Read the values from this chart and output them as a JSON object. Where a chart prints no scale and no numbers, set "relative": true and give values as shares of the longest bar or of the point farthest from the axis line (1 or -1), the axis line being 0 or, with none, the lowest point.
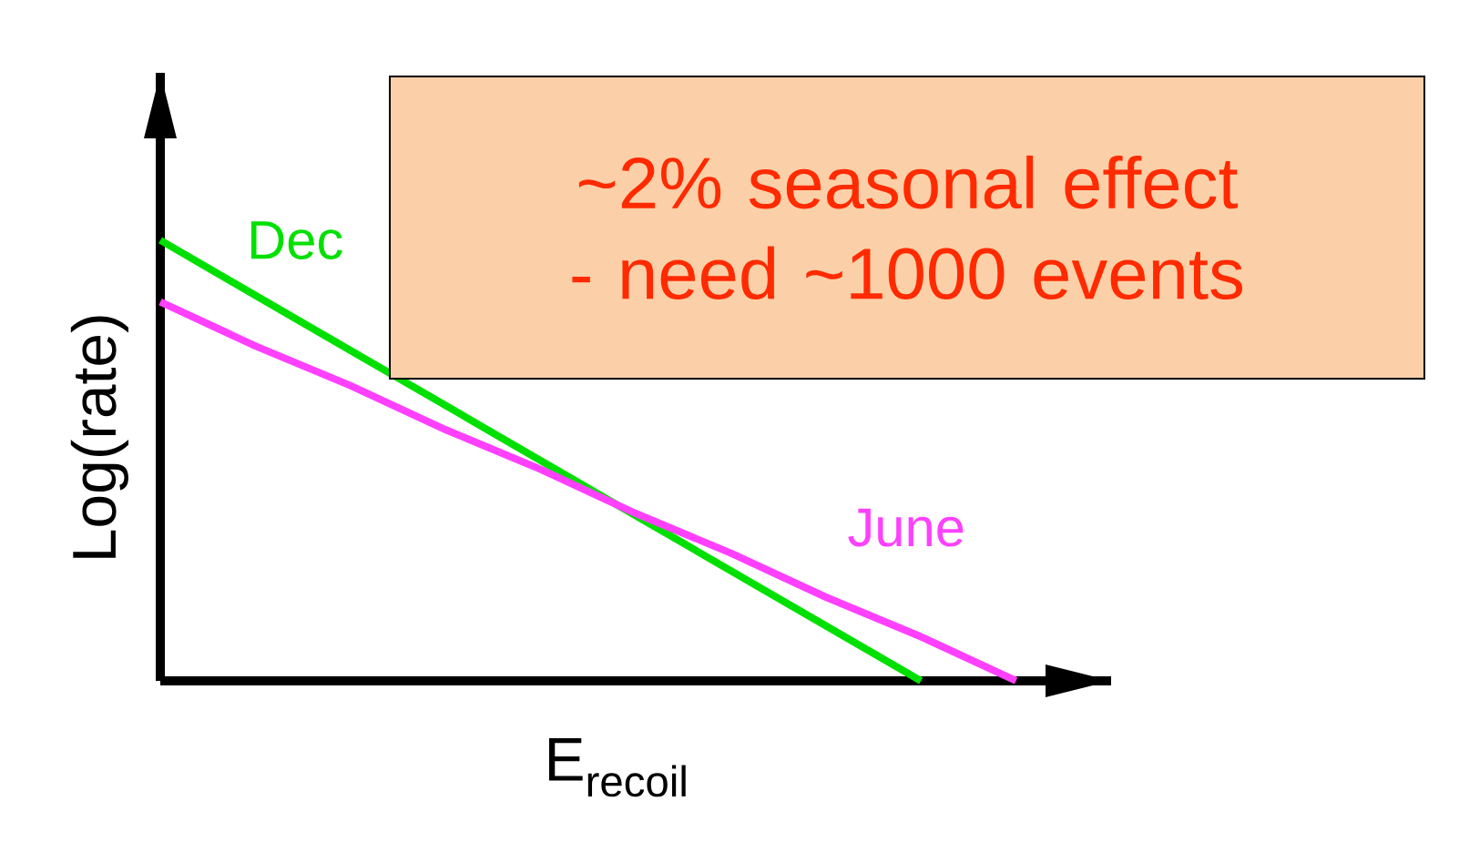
{
  "chart_data": {
    "type": "line",
    "relative": true,
    "xlabel": "E$_{recoil}$",
    "ylabel": "Log(rate)",
    "categories": [
      null,
      null,
      null,
      null,
      null,
      null,
      null,
      null,
      null,
      null,
      null
    ],
    "series": [
      {
        "name": "Dec",
        "color": "#00e000",
        "values": [
          1.0,
          0.875,
          0.75,
          0.625,
          0.5,
          0.375,
          0.25,
          0.125,
          0.0,
          null,
          null
        ]
      },
      {
        "name": "June",
        "color": "#ff40ff",
        "values": [
          0.86,
          0.76,
          0.67,
          0.57,
          0.48,
          0.38,
          0.29,
          0.19,
          0.1,
          0.0,
          null
        ]
      }
    ],
    "annotations": [
      "~2% seasonal effect - need ~1000 events"
    ]
  }
}
